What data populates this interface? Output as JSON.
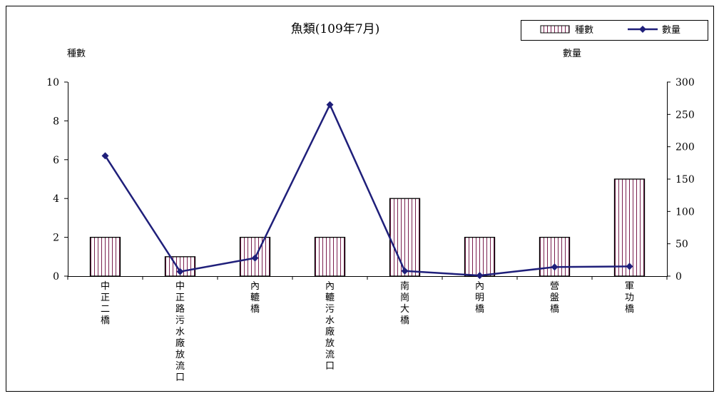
{
  "chart_data": {
    "type": "bar",
    "title": "魚類(109年7月)",
    "categories": [
      "中正二橋",
      "中正路污水廠放流口",
      "內轆橋",
      "內轆污水廠放流口",
      "南崗大橋",
      "內明橋",
      "營盤橋",
      "軍功橋"
    ],
    "series": [
      {
        "name": "種數",
        "type": "bar",
        "axis": "left",
        "values": [
          2,
          1,
          2,
          2,
          4,
          2,
          2,
          5
        ]
      },
      {
        "name": "數量",
        "type": "line",
        "axis": "right",
        "values": [
          186,
          7,
          28,
          265,
          8,
          1,
          14,
          15
        ]
      }
    ],
    "ylabel": "種數",
    "y2label": "數量",
    "ylim": [
      0,
      10
    ],
    "yticks": [
      "0",
      "2",
      "4",
      "6",
      "8",
      "10"
    ],
    "y2lim": [
      0,
      300
    ],
    "y2ticks": [
      "0",
      "50",
      "100",
      "150",
      "200",
      "250",
      "300"
    ],
    "grid": false,
    "legend": "top-right",
    "colors": {
      "bar_stroke": "#000000",
      "bar_hatch": "#7a1f4f",
      "line": "#1f1f7a"
    }
  }
}
